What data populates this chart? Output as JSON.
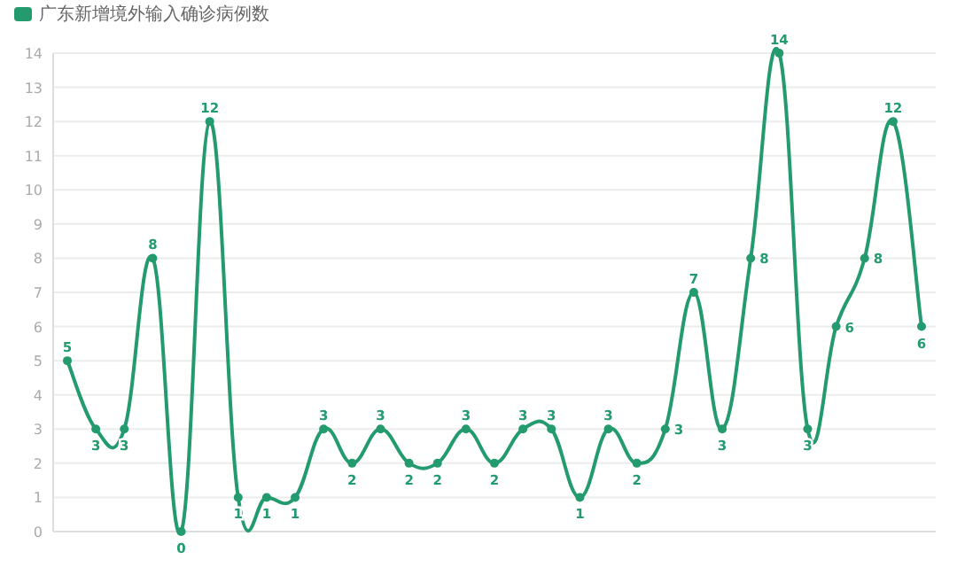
{
  "chart_data": {
    "type": "line",
    "categories": [
      null,
      null,
      null,
      null,
      null,
      null,
      null,
      null,
      null,
      null,
      null,
      null,
      null,
      null,
      null,
      null,
      null,
      null,
      null,
      null,
      null,
      null,
      null,
      null,
      null,
      null,
      null,
      null,
      null,
      null,
      null
    ],
    "series": [
      {
        "name": "广东新增境外输入确诊病例数",
        "color": "#239b6e",
        "values": [
          5,
          3,
          3,
          8,
          0,
          12,
          1,
          1,
          1,
          3,
          2,
          3,
          2,
          2,
          3,
          2,
          3,
          3,
          1,
          3,
          2,
          3,
          7,
          3,
          8,
          14,
          3,
          6,
          8,
          12,
          6
        ]
      }
    ],
    "ylim": [
      0,
      14
    ],
    "yticks": [
      0,
      1,
      2,
      3,
      4,
      5,
      6,
      7,
      8,
      9,
      10,
      11,
      12,
      13,
      14
    ],
    "grid": "y",
    "legend": "top left",
    "marker": "circle",
    "line_style": "solid",
    "data_labels": true
  }
}
